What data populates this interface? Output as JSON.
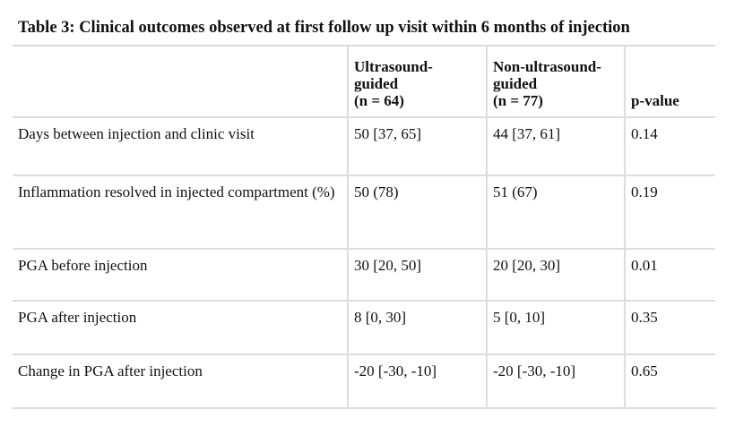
{
  "title": "Table 3: Clinical outcomes observed at first follow up visit within 6 months of injection",
  "table": {
    "header": [
      "",
      "Ultrasound-\nguided\n(n = 64)",
      "Non-ultrasound-\nguided\n(n = 77)",
      "p-value"
    ],
    "rows": [
      [
        "Days between injection and clinic visit",
        "50 [37, 65]",
        "44 [37, 61]",
        "0.14"
      ],
      [
        "Inflammation resolved in injected compartment (%)",
        "50 (78)",
        "51 (67)",
        "0.19"
      ],
      [
        "PGA before injection",
        "30 [20, 50]",
        "20 [20, 30]",
        "0.01"
      ],
      [
        "PGA after injection",
        "8 [0, 30]",
        "5 [0, 10]",
        "0.35"
      ],
      [
        "Change in PGA after injection",
        "-20 [-30, -10]",
        "-20 [-30, -10]",
        "0.65"
      ]
    ]
  }
}
